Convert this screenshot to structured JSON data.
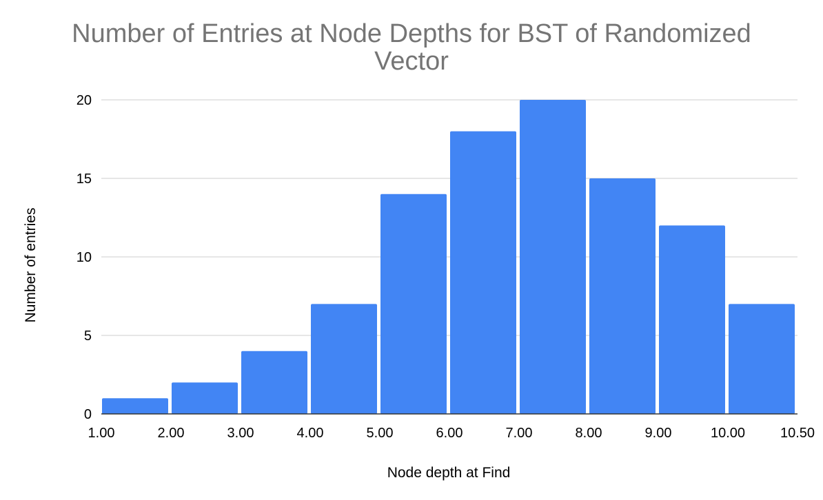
{
  "chart_data": {
    "type": "bar",
    "title_lines": [
      "Number of Entries at Node Depths for BST of Randomized",
      "Vector"
    ],
    "xlabel": "Node depth at Find",
    "ylabel": "Number of entries",
    "x_tick_labels": [
      "1.00",
      "2.00",
      "3.00",
      "4.00",
      "5.00",
      "6.00",
      "7.00",
      "8.00",
      "9.00",
      "10.00",
      "10.50"
    ],
    "y_tick_labels": [
      "0",
      "5",
      "10",
      "15",
      "20"
    ],
    "y_ticks": [
      0,
      5,
      10,
      15,
      20
    ],
    "ylim": [
      0,
      20
    ],
    "values": [
      1,
      2,
      4,
      7,
      14,
      18,
      20,
      15,
      12,
      7
    ],
    "bar_color": "#4285f4",
    "grid": true,
    "legend": "none"
  }
}
